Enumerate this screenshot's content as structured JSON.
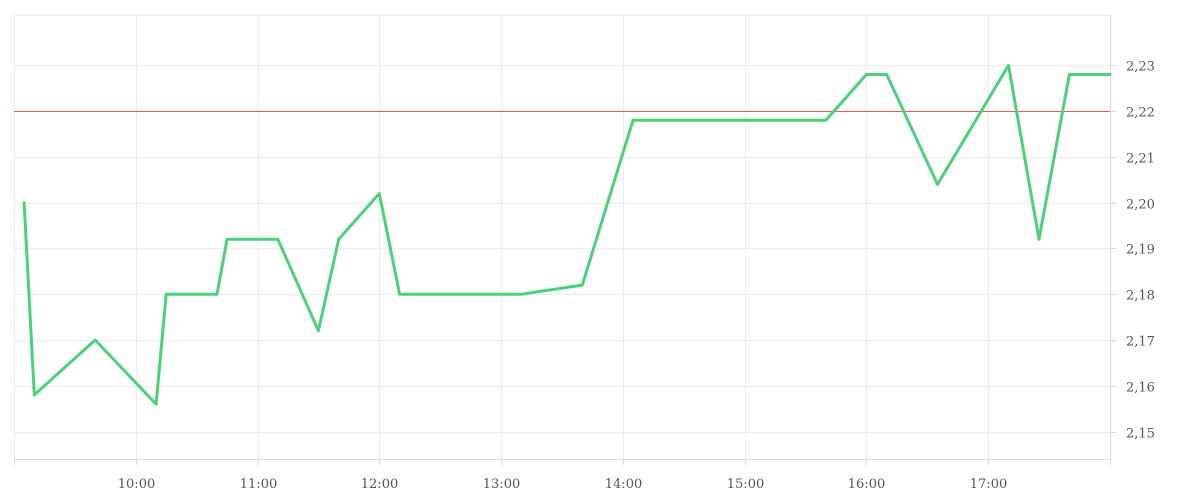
{
  "chart_data": {
    "type": "line",
    "title": "",
    "xlabel": "",
    "ylabel": "",
    "x_ticks": [
      "10:00",
      "11:00",
      "12:00",
      "13:00",
      "14:00",
      "15:00",
      "16:00",
      "17:00"
    ],
    "x_tick_hours": [
      10,
      11,
      12,
      13,
      14,
      15,
      16,
      17
    ],
    "xlim": [
      "09:00",
      "18:00"
    ],
    "y_ticks": [
      "2,15",
      "2,16",
      "2,17",
      "2,18",
      "2,19",
      "2,20",
      "2,21",
      "2,22",
      "2,23"
    ],
    "y_tick_values": [
      2.15,
      2.16,
      2.17,
      2.18,
      2.19,
      2.2,
      2.21,
      2.22,
      2.23
    ],
    "ylim": [
      2.144,
      2.241
    ],
    "grid": true,
    "y_axis_position": "right",
    "reference_line": {
      "value": 2.22,
      "color": "#e05a5a"
    },
    "series": [
      {
        "color": "#4cd07a",
        "points": [
          {
            "t": "09:05",
            "y": 2.2
          },
          {
            "t": "09:10",
            "y": 2.158
          },
          {
            "t": "09:40",
            "y": 2.17
          },
          {
            "t": "10:10",
            "y": 2.156
          },
          {
            "t": "10:15",
            "y": 2.18
          },
          {
            "t": "10:40",
            "y": 2.18
          },
          {
            "t": "10:45",
            "y": 2.192
          },
          {
            "t": "11:10",
            "y": 2.192
          },
          {
            "t": "11:30",
            "y": 2.172
          },
          {
            "t": "11:40",
            "y": 2.192
          },
          {
            "t": "12:00",
            "y": 2.202
          },
          {
            "t": "12:10",
            "y": 2.18
          },
          {
            "t": "13:10",
            "y": 2.18
          },
          {
            "t": "13:40",
            "y": 2.182
          },
          {
            "t": "14:05",
            "y": 2.218
          },
          {
            "t": "15:40",
            "y": 2.218
          },
          {
            "t": "16:00",
            "y": 2.228
          },
          {
            "t": "16:10",
            "y": 2.228
          },
          {
            "t": "16:35",
            "y": 2.204
          },
          {
            "t": "17:10",
            "y": 2.23
          },
          {
            "t": "17:25",
            "y": 2.192
          },
          {
            "t": "17:40",
            "y": 2.228
          },
          {
            "t": "18:00",
            "y": 2.228
          }
        ]
      }
    ]
  }
}
